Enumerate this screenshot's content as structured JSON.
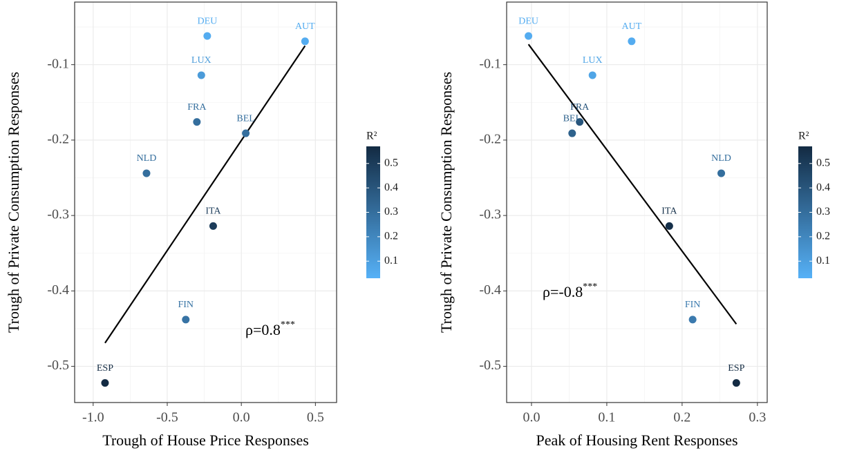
{
  "chart_data": [
    {
      "type": "scatter",
      "xlabel": "Trough of House Price Responses",
      "ylabel": "Trough of Private Consumption Responses",
      "series": [
        {
          "labels": [
            "DEU",
            "AUT",
            "LUX",
            "FRA",
            "BEL",
            "NLD",
            "ITA",
            "FIN",
            "ESP"
          ],
          "x": [
            -0.23,
            0.43,
            -0.27,
            -0.3,
            0.03,
            -0.64,
            -0.19,
            -0.375,
            -0.92
          ],
          "values": [
            -0.062,
            -0.069,
            -0.114,
            -0.176,
            -0.191,
            -0.244,
            -0.314,
            -0.438,
            -0.522
          ],
          "r2": [
            0.05,
            0.05,
            0.12,
            0.3,
            0.3,
            0.3,
            0.5,
            0.28,
            0.57
          ]
        }
      ],
      "fit": {
        "x": [
          -0.92,
          0.43
        ],
        "y": [
          -0.469,
          -0.075
        ],
        "color": "#000000"
      },
      "annotation": {
        "text": "ρ=0.8",
        "sup": "***"
      },
      "xlim": [
        -1.125,
        0.643
      ],
      "ylim": [
        -0.548,
        -0.017
      ],
      "xticks": [
        {
          "value": -1,
          "label": "-1.0"
        },
        -0.5,
        {
          "value": 0,
          "label": "0.0"
        },
        0.5
      ],
      "yticks": [
        -0.5,
        -0.4,
        -0.3,
        -0.2,
        -0.1
      ],
      "grid": true,
      "colorbar": {
        "title": "R²",
        "colormap": [
          "#56B1F7",
          "#132B43"
        ],
        "colorlim": [
          0.03,
          0.57
        ],
        "ticks": [
          0.1,
          0.2,
          0.3,
          0.4,
          0.5
        ]
      }
    },
    {
      "type": "scatter",
      "xlabel": "Peak of Housing Rent Responses",
      "ylabel": "Trough of Private Consumption Responses",
      "series": [
        {
          "labels": [
            "DEU",
            "AUT",
            "LUX",
            "FRA",
            "BEL",
            "NLD",
            "ITA",
            "FIN",
            "ESP"
          ],
          "x": [
            -0.004,
            0.133,
            0.081,
            0.064,
            0.054,
            0.252,
            0.183,
            0.214,
            0.272
          ],
          "values": [
            -0.062,
            -0.069,
            -0.114,
            -0.176,
            -0.191,
            -0.244,
            -0.314,
            -0.438,
            -0.522
          ],
          "r2": [
            0.05,
            0.05,
            0.08,
            0.4,
            0.35,
            0.3,
            0.55,
            0.25,
            0.57
          ]
        }
      ],
      "fit": {
        "x": [
          -0.004,
          0.272
        ],
        "y": [
          -0.073,
          -0.444
        ],
        "color": "#000000"
      },
      "annotation": {
        "text": "ρ=-0.8",
        "sup": "***"
      },
      "xlim": [
        -0.033,
        0.313
      ],
      "ylim": [
        -0.548,
        -0.017
      ],
      "xticks": [
        {
          "value": 0,
          "label": "0.0"
        },
        0.1,
        0.2,
        0.3
      ],
      "yticks": [
        -0.5,
        -0.4,
        -0.3,
        -0.2,
        -0.1
      ],
      "grid": true,
      "colorbar": {
        "title": "R²",
        "colormap": [
          "#56B1F7",
          "#132B43"
        ],
        "colorlim": [
          0.03,
          0.57
        ],
        "ticks": [
          0.1,
          0.2,
          0.3,
          0.4,
          0.5
        ]
      }
    }
  ]
}
